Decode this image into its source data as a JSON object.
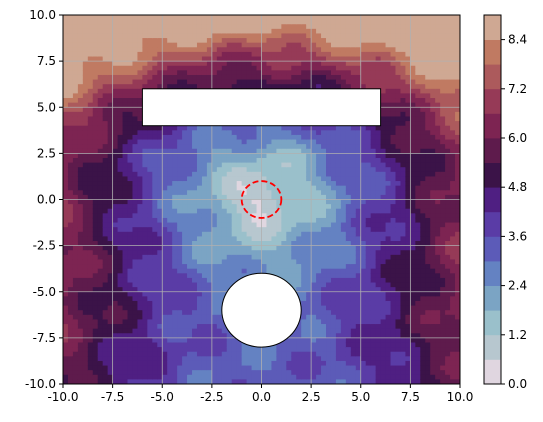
{
  "chart_data": {
    "type": "heatmap",
    "title": "",
    "xlabel": "",
    "ylabel": "",
    "xlim": [
      -10,
      10
    ],
    "ylim": [
      -10,
      10
    ],
    "x_ticks": [
      "-10.0",
      "-7.5",
      "-5.0",
      "-2.5",
      "0.0",
      "2.5",
      "5.0",
      "7.5",
      "10.0"
    ],
    "y_ticks": [
      "-10.0",
      "-7.5",
      "-5.0",
      "-2.5",
      "0.0",
      "2.5",
      "5.0",
      "7.5",
      "10.0"
    ],
    "grid": true,
    "colormap": "twilight (first half)",
    "colorbar": {
      "vmin": 0.0,
      "vmax": 9.0,
      "levels": [
        0.0,
        0.6,
        1.2,
        1.8,
        2.4,
        3.0,
        3.6,
        4.2,
        4.8,
        5.4,
        6.0,
        6.6,
        7.2,
        7.8,
        8.4,
        9.0
      ],
      "tick_labels": [
        "0.0",
        "1.2",
        "2.4",
        "3.6",
        "4.8",
        "6.0",
        "7.2",
        "8.4"
      ],
      "tick_values": [
        0.0,
        1.2,
        2.4,
        3.6,
        4.8,
        6.0,
        7.2,
        8.4
      ]
    },
    "band_colors": [
      "#e0d6e0",
      "#b7c7cf",
      "#9ac0cb",
      "#7ba4c4",
      "#6482c2",
      "#5c5bb8",
      "#5a3ca6",
      "#4f1f82",
      "#3b1348",
      "#5e1b4c",
      "#7d2452",
      "#963a57",
      "#ac5a5c",
      "#c07a62",
      "#cfa893"
    ],
    "field_description_values": {
      "center": [
        0,
        0
      ],
      "center_value": 0.3,
      "radial_slope": 0.6,
      "max_value": 9.0
    },
    "obstacles": [
      {
        "shape": "rectangle",
        "x_range": [
          -6,
          6
        ],
        "y_range": [
          4,
          6
        ],
        "fill": "#ffffff",
        "edge": "#000000"
      },
      {
        "shape": "circle",
        "center": [
          0,
          -6
        ],
        "radius": 2,
        "fill": "#ffffff",
        "edge": "#000000"
      }
    ],
    "annotations": [
      {
        "shape": "circle",
        "center": [
          0,
          0
        ],
        "radius": 1,
        "style": "dashed",
        "color": "#ff0000"
      }
    ]
  }
}
